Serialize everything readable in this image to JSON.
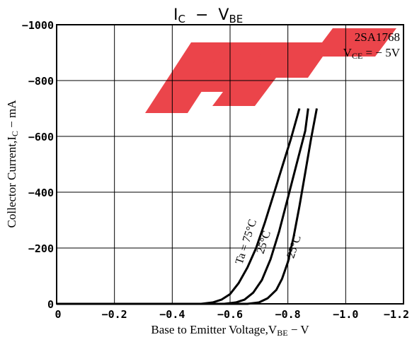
{
  "chart_data": {
    "type": "line",
    "title": {
      "main": "I",
      "main_sub": "C",
      "dash": "−",
      "v": "V",
      "v_sub": "BE"
    },
    "part_number": "2SA1768",
    "condition": {
      "prefix": "V",
      "sub": "CE",
      "rest": " = − 5V"
    },
    "xlabel": {
      "text": "Base to Emitter Voltage,V",
      "sub": "BE",
      "unit": " − V"
    },
    "ylabel": {
      "text": "Collector Current,I",
      "sub": "C",
      "unit": " − mA"
    },
    "xlim": [
      0,
      -1.2
    ],
    "ylim": [
      0,
      -1000
    ],
    "x_ticks": [
      0,
      -0.2,
      -0.4,
      -0.6,
      -0.8,
      -1.0,
      -1.2
    ],
    "x_tick_labels": [
      "0",
      "−0.2",
      "−0.4",
      "−0.6",
      "−0.8",
      "−1.0",
      "−1.2"
    ],
    "y_ticks": [
      0,
      -200,
      -400,
      -600,
      -800,
      -1000
    ],
    "y_tick_labels": [
      "0",
      "−200",
      "−400",
      "−600",
      "−800",
      "−1000"
    ],
    "grid": true,
    "series": [
      {
        "name": "Ta = 75°C",
        "x": [
          -0.5,
          -0.54,
          -0.57,
          -0.6,
          -0.63,
          -0.66,
          -0.69,
          -0.72,
          -0.75,
          -0.78,
          -0.81,
          -0.84
        ],
        "y": [
          0,
          -5,
          -15,
          -35,
          -75,
          -130,
          -200,
          -290,
          -390,
          -490,
          -590,
          -700
        ]
      },
      {
        "name": "25°C",
        "x": [
          -0.58,
          -0.62,
          -0.65,
          -0.68,
          -0.71,
          -0.74,
          -0.77,
          -0.8,
          -0.83,
          -0.86,
          -0.87
        ],
        "y": [
          0,
          -5,
          -15,
          -40,
          -85,
          -160,
          -260,
          -380,
          -500,
          -620,
          -700
        ]
      },
      {
        "name": "−25°C",
        "x": [
          -0.66,
          -0.7,
          -0.73,
          -0.76,
          -0.78,
          -0.8,
          -0.82,
          -0.84,
          -0.86,
          -0.88,
          -0.9
        ],
        "y": [
          0,
          -5,
          -20,
          -50,
          -90,
          -150,
          -240,
          -350,
          -470,
          -590,
          -700
        ]
      }
    ],
    "curve_labels": [
      "Ta = 75°C",
      "25°C",
      "−25°C"
    ],
    "colors": {
      "line": "#000000",
      "grid": "#000000",
      "watermark": "#e8242b"
    }
  }
}
